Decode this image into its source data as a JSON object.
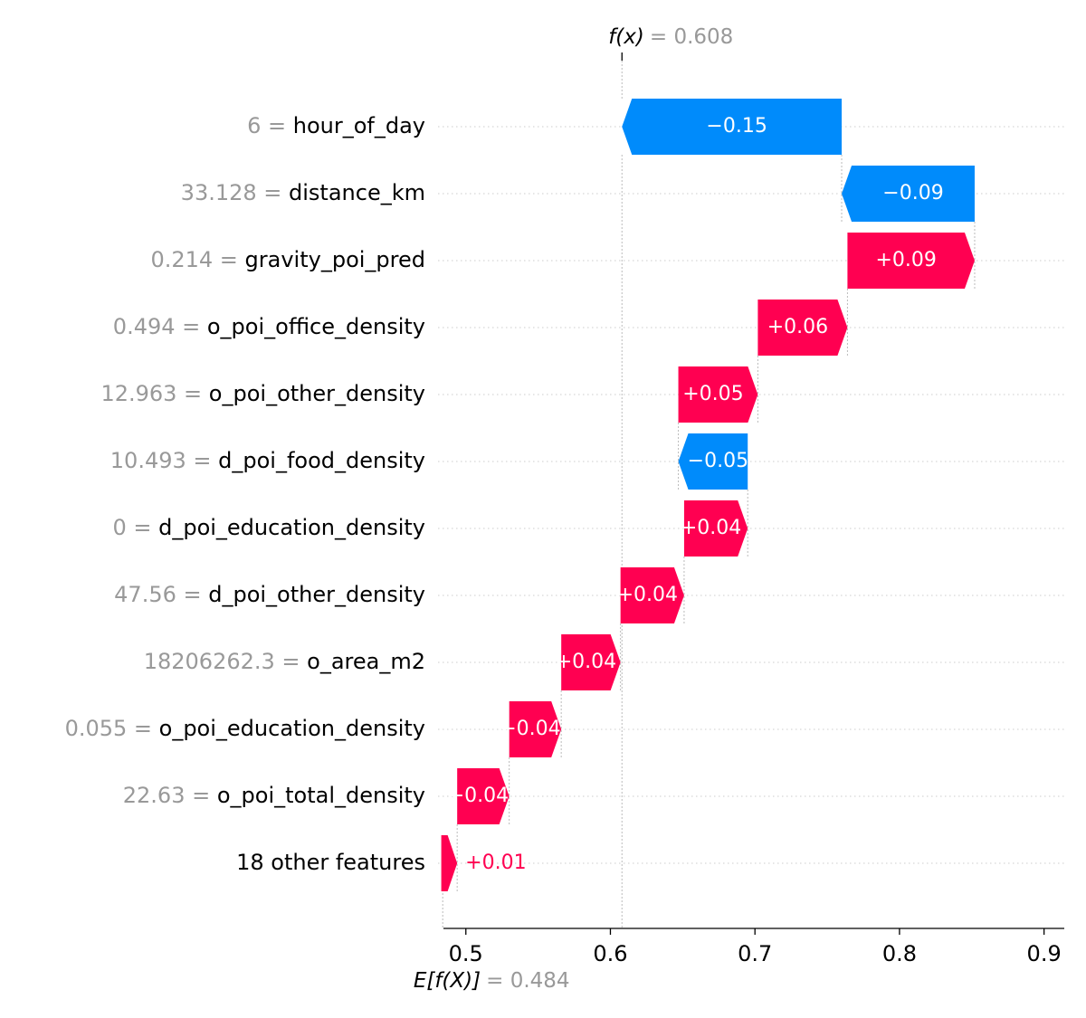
{
  "chart_data": {
    "type": "waterfall",
    "top_label": {
      "prefix": "f(x)",
      "value_text": "= 0.608",
      "value": 0.608
    },
    "bottom_label": {
      "prefix": "E[f(X)]",
      "value_text": "= 0.484",
      "value": 0.484
    },
    "xlim": [
      0.4845,
      0.914
    ],
    "x_ticks": [
      0.5,
      0.6,
      0.7,
      0.8,
      0.9
    ],
    "x_tick_labels": [
      "0.5",
      "0.6",
      "0.7",
      "0.8",
      "0.9"
    ],
    "grid": "dotted horizontal row lines",
    "colors": {
      "positive": "#ff0051",
      "negative": "#008bfb",
      "neutral_text": "#999999"
    },
    "features": [
      {
        "value": "6",
        "name": "hour_of_day",
        "contribution": -0.152,
        "label": "−0.15"
      },
      {
        "value": "33.128",
        "name": "distance_km",
        "contribution": -0.092,
        "label": "−0.09"
      },
      {
        "value": "0.214",
        "name": "gravity_poi_pred",
        "contribution": 0.088,
        "label": "+0.09"
      },
      {
        "value": "0.494",
        "name": "o_poi_office_density",
        "contribution": 0.062,
        "label": "+0.06"
      },
      {
        "value": "12.963",
        "name": "o_poi_other_density",
        "contribution": 0.055,
        "label": "+0.05"
      },
      {
        "value": "10.493",
        "name": "d_poi_food_density",
        "contribution": -0.048,
        "label": "−0.05"
      },
      {
        "value": "0",
        "name": "d_poi_education_density",
        "contribution": 0.044,
        "label": "+0.04"
      },
      {
        "value": "47.56",
        "name": "d_poi_other_density",
        "contribution": 0.044,
        "label": "+0.04"
      },
      {
        "value": "18206262.3",
        "name": "o_area_m2",
        "contribution": 0.041,
        "label": "+0.04"
      },
      {
        "value": "0.055",
        "name": "o_poi_education_density",
        "contribution": 0.036,
        "label": "+0.04"
      },
      {
        "value": "22.63",
        "name": "o_poi_total_density",
        "contribution": 0.036,
        "label": "+0.04"
      },
      {
        "value": "",
        "name": "18 other features",
        "contribution": 0.011,
        "label": "+0.01"
      }
    ]
  }
}
